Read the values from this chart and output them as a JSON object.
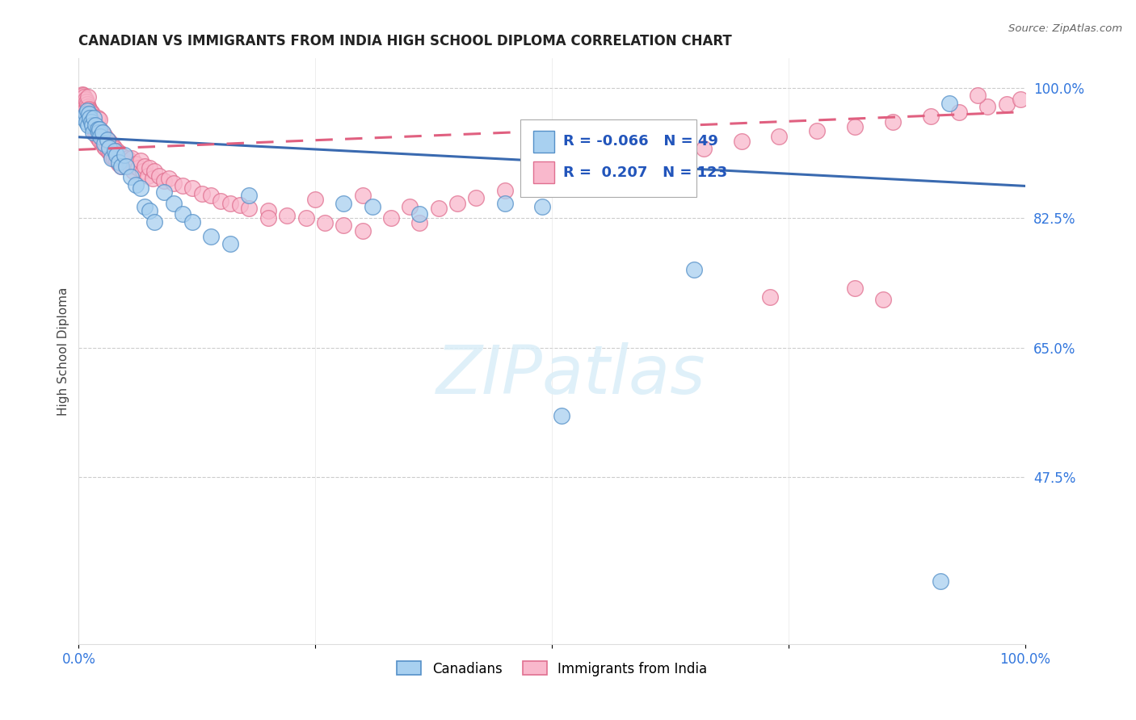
{
  "title": "CANADIAN VS IMMIGRANTS FROM INDIA HIGH SCHOOL DIPLOMA CORRELATION CHART",
  "source": "Source: ZipAtlas.com",
  "ylabel": "High School Diploma",
  "ymin": 0.25,
  "ymax": 1.04,
  "xmin": 0.0,
  "xmax": 1.0,
  "legend_r_blue": "-0.066",
  "legend_n_blue": "49",
  "legend_r_pink": "0.207",
  "legend_n_pink": "123",
  "blue_face_color": "#a8d0f0",
  "blue_edge_color": "#5590c8",
  "pink_face_color": "#f9b8cc",
  "pink_edge_color": "#e07090",
  "blue_line_color": "#3a6ab0",
  "pink_line_color": "#e06080",
  "grid_color": "#cccccc",
  "right_tick_color": "#3377dd",
  "blue_trend_start_y": 0.934,
  "blue_trend_end_y": 0.868,
  "pink_trend_start_y": 0.917,
  "pink_trend_end_y": 0.968,
  "canadians_x": [
    0.005,
    0.007,
    0.008,
    0.009,
    0.01,
    0.011,
    0.012,
    0.013,
    0.014,
    0.015,
    0.016,
    0.018,
    0.02,
    0.021,
    0.022,
    0.023,
    0.025,
    0.027,
    0.03,
    0.032,
    0.035,
    0.038,
    0.04,
    0.042,
    0.045,
    0.048,
    0.05,
    0.055,
    0.06,
    0.065,
    0.07,
    0.075,
    0.08,
    0.09,
    0.1,
    0.11,
    0.12,
    0.14,
    0.16,
    0.18,
    0.28,
    0.31,
    0.36,
    0.45,
    0.49,
    0.51,
    0.65,
    0.91,
    0.92
  ],
  "canadians_y": [
    0.96,
    0.965,
    0.955,
    0.97,
    0.95,
    0.965,
    0.96,
    0.955,
    0.95,
    0.94,
    0.96,
    0.95,
    0.945,
    0.94,
    0.945,
    0.935,
    0.94,
    0.925,
    0.93,
    0.92,
    0.905,
    0.915,
    0.91,
    0.9,
    0.895,
    0.91,
    0.895,
    0.88,
    0.87,
    0.865,
    0.84,
    0.835,
    0.82,
    0.86,
    0.845,
    0.83,
    0.82,
    0.8,
    0.79,
    0.855,
    0.845,
    0.84,
    0.83,
    0.845,
    0.84,
    0.558,
    0.755,
    0.335,
    0.98
  ],
  "india_x": [
    0.003,
    0.004,
    0.005,
    0.005,
    0.006,
    0.006,
    0.007,
    0.007,
    0.008,
    0.008,
    0.009,
    0.009,
    0.01,
    0.01,
    0.01,
    0.011,
    0.011,
    0.012,
    0.012,
    0.013,
    0.013,
    0.014,
    0.014,
    0.015,
    0.015,
    0.016,
    0.016,
    0.017,
    0.017,
    0.018,
    0.018,
    0.019,
    0.02,
    0.02,
    0.021,
    0.022,
    0.022,
    0.023,
    0.024,
    0.025,
    0.026,
    0.027,
    0.028,
    0.029,
    0.03,
    0.031,
    0.032,
    0.033,
    0.034,
    0.035,
    0.036,
    0.037,
    0.038,
    0.04,
    0.041,
    0.042,
    0.043,
    0.045,
    0.047,
    0.049,
    0.05,
    0.052,
    0.054,
    0.056,
    0.058,
    0.06,
    0.063,
    0.065,
    0.068,
    0.07,
    0.073,
    0.075,
    0.078,
    0.08,
    0.085,
    0.09,
    0.095,
    0.1,
    0.11,
    0.12,
    0.13,
    0.14,
    0.15,
    0.16,
    0.17,
    0.18,
    0.2,
    0.22,
    0.24,
    0.26,
    0.28,
    0.3,
    0.33,
    0.36,
    0.38,
    0.4,
    0.42,
    0.45,
    0.48,
    0.5,
    0.54,
    0.57,
    0.6,
    0.63,
    0.66,
    0.7,
    0.74,
    0.78,
    0.82,
    0.86,
    0.9,
    0.93,
    0.96,
    0.98,
    0.995,
    0.2,
    0.25,
    0.3,
    0.35,
    0.73,
    0.82,
    0.85,
    0.95
  ],
  "india_y": [
    0.985,
    0.992,
    0.978,
    0.99,
    0.975,
    0.988,
    0.972,
    0.985,
    0.968,
    0.982,
    0.965,
    0.978,
    0.962,
    0.975,
    0.988,
    0.96,
    0.972,
    0.958,
    0.97,
    0.955,
    0.968,
    0.952,
    0.965,
    0.948,
    0.962,
    0.945,
    0.958,
    0.942,
    0.955,
    0.938,
    0.952,
    0.935,
    0.948,
    0.96,
    0.932,
    0.945,
    0.958,
    0.928,
    0.942,
    0.925,
    0.938,
    0.921,
    0.935,
    0.918,
    0.931,
    0.915,
    0.928,
    0.912,
    0.925,
    0.908,
    0.922,
    0.905,
    0.918,
    0.902,
    0.915,
    0.898,
    0.912,
    0.895,
    0.908,
    0.902,
    0.895,
    0.905,
    0.895,
    0.905,
    0.888,
    0.898,
    0.892,
    0.902,
    0.888,
    0.895,
    0.882,
    0.892,
    0.878,
    0.888,
    0.882,
    0.875,
    0.878,
    0.872,
    0.868,
    0.865,
    0.858,
    0.855,
    0.848,
    0.845,
    0.842,
    0.838,
    0.835,
    0.828,
    0.825,
    0.818,
    0.815,
    0.808,
    0.825,
    0.818,
    0.838,
    0.845,
    0.852,
    0.862,
    0.872,
    0.882,
    0.892,
    0.898,
    0.905,
    0.912,
    0.918,
    0.928,
    0.935,
    0.942,
    0.948,
    0.955,
    0.962,
    0.968,
    0.975,
    0.978,
    0.985,
    0.825,
    0.85,
    0.855,
    0.84,
    0.718,
    0.73,
    0.715,
    0.99
  ]
}
